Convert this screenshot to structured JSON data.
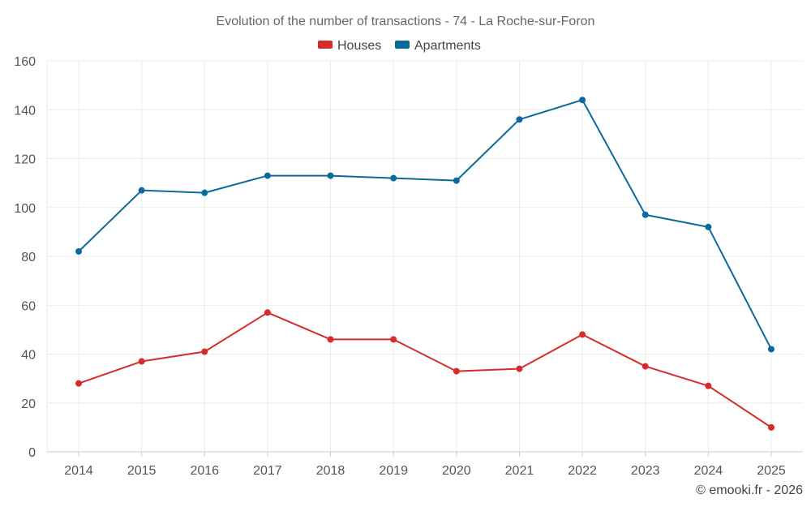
{
  "chart_data": {
    "type": "line",
    "title": "Evolution of the number of transactions - 74 - La Roche-sur-Foron",
    "xlabel": "",
    "ylabel": "",
    "categories": [
      "2014",
      "2015",
      "2016",
      "2017",
      "2018",
      "2019",
      "2020",
      "2021",
      "2022",
      "2023",
      "2024",
      "2025"
    ],
    "ylim": [
      0,
      160
    ],
    "yticks": [
      0,
      20,
      40,
      60,
      80,
      100,
      120,
      140,
      160
    ],
    "grid": true,
    "legend_position": "top-center",
    "series": [
      {
        "name": "Houses",
        "color": "#d62b2b",
        "values": [
          28,
          37,
          41,
          57,
          46,
          46,
          33,
          34,
          48,
          35,
          27,
          10
        ]
      },
      {
        "name": "Apartments",
        "color": "#0b6a9c",
        "values": [
          82,
          107,
          106,
          113,
          113,
          112,
          111,
          136,
          144,
          97,
          92,
          42
        ]
      }
    ]
  },
  "footer": "© emooki.fr - 2026"
}
